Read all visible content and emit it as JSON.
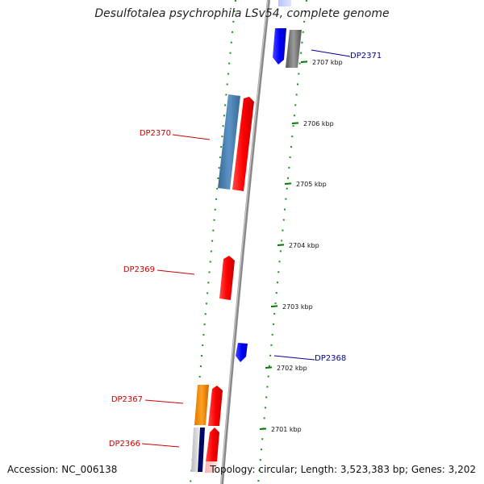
{
  "title": "Desulfotalea psychrophila LSv54, complete genome",
  "footer": {
    "accession": "Accession: NC_006138",
    "summary": "Topology: circular; Length: 3,523,383 bp; Genes: 3,202"
  },
  "colors": {
    "forward": "#ff0000",
    "reverse": "#0000ff",
    "backbone": "#999999",
    "ticks": "#007700",
    "label_forward": "#cc0000",
    "label_reverse": "#000099"
  },
  "ticks": [
    {
      "label": "2707 kbp"
    },
    {
      "label": "2706 kbp"
    },
    {
      "label": "2705 kbp"
    },
    {
      "label": "2704 kbp"
    },
    {
      "label": "2703 kbp"
    },
    {
      "label": "2702 kbp"
    },
    {
      "label": "2701 kbp"
    }
  ],
  "gene_labels": [
    {
      "name": "DP2371",
      "strand": "reverse"
    },
    {
      "name": "DP2370",
      "strand": "forward"
    },
    {
      "name": "DP2369",
      "strand": "forward"
    },
    {
      "name": "DP2368",
      "strand": "reverse"
    },
    {
      "name": "DP2367",
      "strand": "forward"
    },
    {
      "name": "DP2366",
      "strand": "forward"
    }
  ]
}
